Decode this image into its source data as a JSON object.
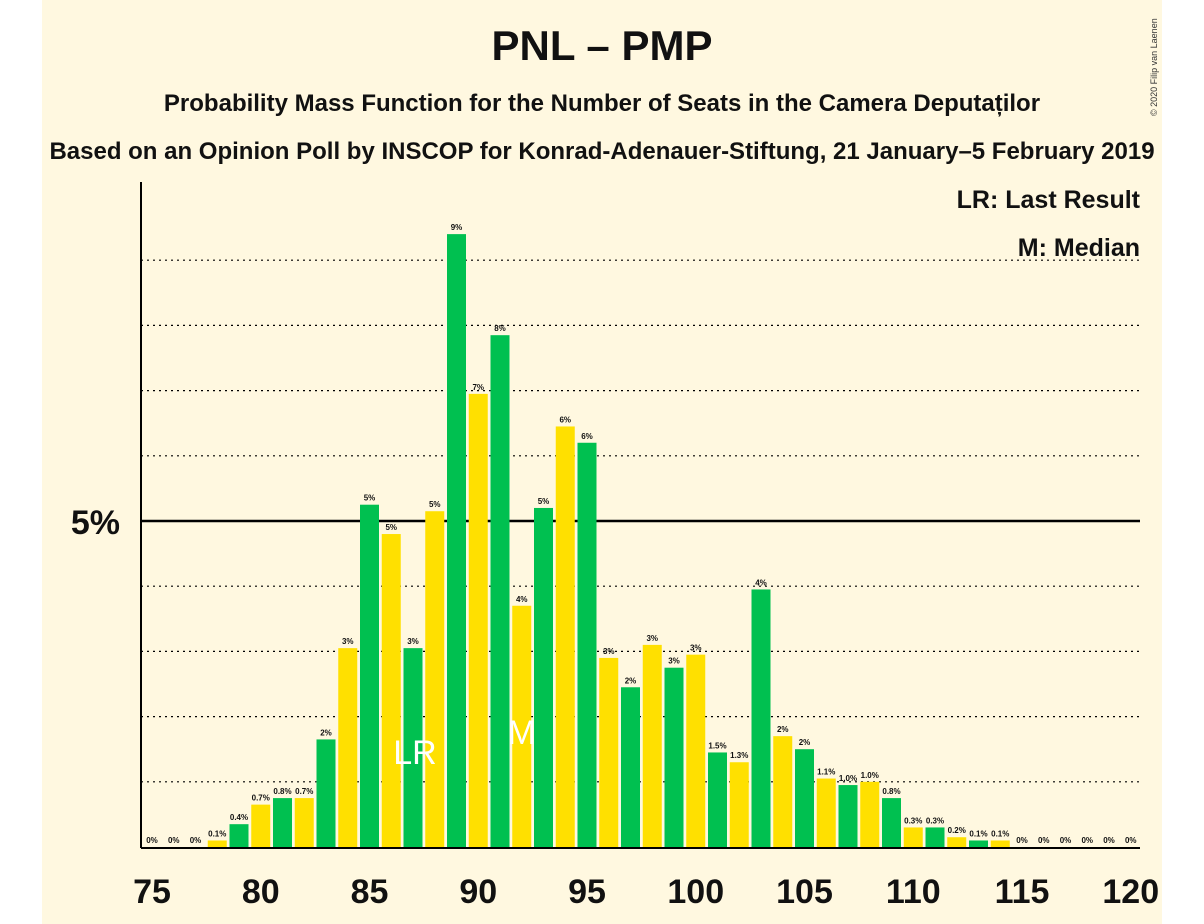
{
  "header": {
    "title": "PNL – PMP",
    "subtitle": "Probability Mass Function for the Number of Seats in the Camera Deputaților",
    "source": "Based on an Opinion Poll by INSCOP for Konrad-Adenauer-Stiftung, 21 January–5 February 2019",
    "copyright": "© 2020 Filip van Laenen"
  },
  "legend": {
    "last_result": "LR: Last Result",
    "median": "M: Median"
  },
  "colors": {
    "background": "#fff8e0",
    "green": "#00c050",
    "yellow": "#ffe000",
    "text": "#111111"
  },
  "chart_data": {
    "type": "bar",
    "x": [
      75,
      76,
      77,
      78,
      79,
      80,
      81,
      82,
      83,
      84,
      85,
      86,
      87,
      88,
      89,
      90,
      91,
      92,
      93,
      94,
      95,
      96,
      97,
      98,
      99,
      100,
      101,
      102,
      103,
      104,
      105,
      106,
      107,
      108,
      109,
      110,
      111,
      112,
      113,
      114,
      115,
      116,
      117,
      118,
      119,
      120
    ],
    "values": [
      0,
      0,
      0,
      0.1,
      0.35,
      0.65,
      0.75,
      0.75,
      1.65,
      3.05,
      5.25,
      4.8,
      3.05,
      5.15,
      9.4,
      6.95,
      7.85,
      3.7,
      5.2,
      6.45,
      6.2,
      2.9,
      2.45,
      3.1,
      2.75,
      2.95,
      1.45,
      1.3,
      3.95,
      1.7,
      1.5,
      1.05,
      0.95,
      1.0,
      0.75,
      0.3,
      0.3,
      0.15,
      0.1,
      0.1,
      0,
      0,
      0,
      0,
      0,
      0
    ],
    "labels": [
      "0%",
      "0%",
      "0%",
      "0.1%",
      "0.4%",
      "0.7%",
      "0.8%",
      "0.7%",
      "2%",
      "3%",
      "5%",
      "5%",
      "3%",
      "5%",
      "9%",
      "7%",
      "8%",
      "4%",
      "5%",
      "6%",
      "6%",
      "3%",
      "2%",
      "3%",
      "3%",
      "3%",
      "1.5%",
      "1.3%",
      "4%",
      "2%",
      "2%",
      "1.1%",
      "1.0%",
      "1.0%",
      "0.8%",
      "0.3%",
      "0.3%",
      "0.2%",
      "0.1%",
      "0.1%",
      "0%",
      "0%",
      "0%",
      "0%",
      "0%",
      "0%"
    ],
    "xticks": [
      "75",
      "80",
      "85",
      "90",
      "95",
      "100",
      "105",
      "110",
      "115",
      "120"
    ],
    "ytick_label": "5%",
    "ylim": [
      0,
      10
    ],
    "gridlines": [
      1,
      2,
      3,
      4,
      5,
      6,
      7,
      8,
      9
    ],
    "last_result_seat": 87,
    "last_result_marker": "LR",
    "median_seat": 92,
    "median_marker": "M"
  }
}
